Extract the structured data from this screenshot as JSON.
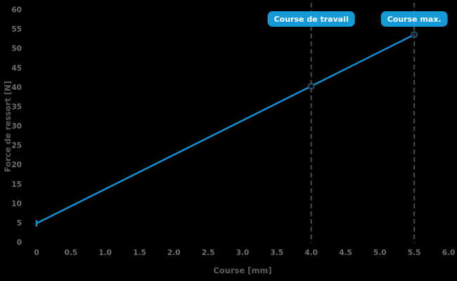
{
  "colors": {
    "background": "#000000",
    "line": "#1193d6",
    "marker_edge": "#1d4d68",
    "marker_fill": "#000000",
    "dashed_line": "#4d4d4d",
    "badge_bg": "#149bd7",
    "badge_text": "#ffffff",
    "tick_text": "#6e6e6e",
    "axis_label_text": "#5d5d5d"
  },
  "chart_data": {
    "type": "line",
    "xlabel": "Course [mm]",
    "ylabel": "Force de ressort [N]",
    "xlim": [
      0,
      6.0
    ],
    "ylim": [
      0,
      60
    ],
    "grid": false,
    "legend": false,
    "xticks": [
      {
        "value": 0,
        "label": "0"
      },
      {
        "value": 0.5,
        "label": "0.5"
      },
      {
        "value": 1.0,
        "label": "1.0"
      },
      {
        "value": 1.5,
        "label": "1.5"
      },
      {
        "value": 2.0,
        "label": "2.0"
      },
      {
        "value": 2.5,
        "label": "2.5"
      },
      {
        "value": 3.0,
        "label": "3.0"
      },
      {
        "value": 3.5,
        "label": "3.5"
      },
      {
        "value": 4.0,
        "label": "4.0"
      },
      {
        "value": 4.5,
        "label": "4.5"
      },
      {
        "value": 5.0,
        "label": "5.0"
      },
      {
        "value": 5.5,
        "label": "5.5"
      },
      {
        "value": 6.0,
        "label": "6.0"
      }
    ],
    "yticks": [
      {
        "value": 0,
        "label": "0"
      },
      {
        "value": 5,
        "label": "5"
      },
      {
        "value": 10,
        "label": "10"
      },
      {
        "value": 15,
        "label": "15"
      },
      {
        "value": 20,
        "label": "20"
      },
      {
        "value": 25,
        "label": "25"
      },
      {
        "value": 30,
        "label": "30"
      },
      {
        "value": 35,
        "label": "35"
      },
      {
        "value": 40,
        "label": "40"
      },
      {
        "value": 45,
        "label": "45"
      },
      {
        "value": 50,
        "label": "50"
      },
      {
        "value": 55,
        "label": "55"
      },
      {
        "value": 60,
        "label": "60"
      }
    ],
    "series": [
      {
        "points": [
          {
            "x": 0,
            "y": 4.9,
            "marker": "tick"
          },
          {
            "x": 4.0,
            "y": 40.3,
            "marker": "circle"
          },
          {
            "x": 5.5,
            "y": 53.6,
            "marker": "circle"
          }
        ]
      }
    ],
    "annotations": [
      {
        "x": 4.0,
        "label": "Course de travail"
      },
      {
        "x": 5.5,
        "label": "Course max."
      }
    ]
  }
}
